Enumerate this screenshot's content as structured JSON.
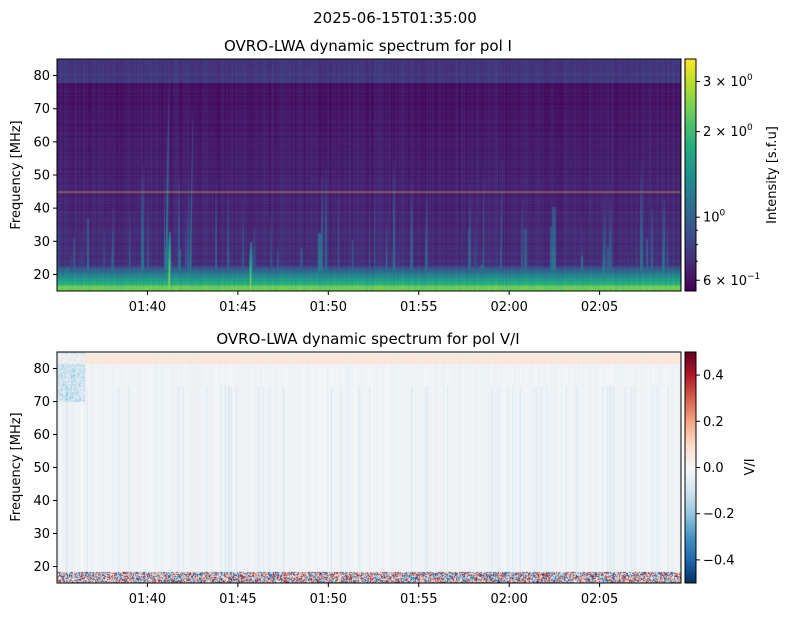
{
  "figure": {
    "suptitle": "2025-06-15T01:35:00"
  },
  "chart_data": [
    {
      "type": "heatmap",
      "title": "OVRO-LWA dynamic spectrum for pol I",
      "xlabel": "",
      "ylabel": "Frequency [MHz]",
      "x_range": [
        "01:35:00",
        "02:09:30"
      ],
      "x_ticks": [
        {
          "t": "01:40",
          "label": "01:40"
        },
        {
          "t": "01:45",
          "label": "01:45"
        },
        {
          "t": "01:50",
          "label": "01:50"
        },
        {
          "t": "01:55",
          "label": "01:55"
        },
        {
          "t": "02:00",
          "label": "02:00"
        },
        {
          "t": "02:05",
          "label": "02:05"
        }
      ],
      "ylim": [
        15,
        85
      ],
      "y_ticks": [
        20,
        30,
        40,
        50,
        60,
        70,
        80
      ],
      "colormap": "viridis",
      "colorbar": {
        "label": "Intensity [s.f.u]",
        "scale": "log",
        "range": [
          0.55,
          3.6
        ],
        "ticks": [
          {
            "value": 3,
            "base": "3 × 10",
            "exp": "0"
          },
          {
            "value": 2,
            "base": "2 × 10",
            "exp": "0"
          },
          {
            "value": 1,
            "base": "10",
            "exp": "0"
          },
          {
            "value": 0.6,
            "base": "6 × 10",
            "exp": "−1"
          }
        ]
      },
      "horizontal_line_mhz": 45,
      "features": {
        "background_level": 0.6,
        "low_freq_band_mhz": [
          15,
          22
        ],
        "bursts": [
          {
            "t": "01:41:10",
            "f_top": 33,
            "level": 3.2
          },
          {
            "t": "01:45:40",
            "f_top": 30,
            "level": 3.0
          },
          {
            "t": "01:41:00",
            "f_top": 85,
            "level": 1.6
          },
          {
            "t": "01:42:20",
            "f_top": 80,
            "level": 1.4
          },
          {
            "t": "01:38:00",
            "f_top": 40,
            "level": 1.5
          },
          {
            "t": "01:47:10",
            "f_top": 35,
            "level": 1.5
          },
          {
            "t": "01:53:10",
            "f_top": 45,
            "level": 1.4
          },
          {
            "t": "01:55:20",
            "f_top": 60,
            "level": 1.3
          },
          {
            "t": "01:59:30",
            "f_top": 70,
            "level": 1.3
          },
          {
            "t": "02:05:10",
            "f_top": 40,
            "level": 1.6
          },
          {
            "t": "02:08:30",
            "f_top": 50,
            "level": 1.6
          }
        ]
      }
    },
    {
      "type": "heatmap",
      "title": "OVRO-LWA dynamic spectrum for pol V/I",
      "xlabel": "",
      "ylabel": "Frequency [MHz]",
      "x_range": [
        "01:35:00",
        "02:09:30"
      ],
      "x_ticks": [
        {
          "t": "01:40",
          "label": "01:40"
        },
        {
          "t": "01:45",
          "label": "01:45"
        },
        {
          "t": "01:50",
          "label": "01:50"
        },
        {
          "t": "01:55",
          "label": "01:55"
        },
        {
          "t": "02:00",
          "label": "02:00"
        },
        {
          "t": "02:05",
          "label": "02:05"
        }
      ],
      "ylim": [
        15,
        85
      ],
      "y_ticks": [
        20,
        30,
        40,
        50,
        60,
        70,
        80
      ],
      "colormap": "RdBu_r",
      "colorbar": {
        "label": "V/I",
        "scale": "linear",
        "range": [
          -0.5,
          0.5
        ],
        "ticks": [
          {
            "value": 0.4,
            "label": "0.4"
          },
          {
            "value": 0.2,
            "label": "0.2"
          },
          {
            "value": 0.0,
            "label": "0.0"
          },
          {
            "value": -0.2,
            "label": "−0.2"
          },
          {
            "value": -0.4,
            "label": "−0.4"
          }
        ]
      },
      "features": {
        "background_level": -0.02,
        "high_freq_band_mhz": [
          82,
          84
        ],
        "low_freq_band_mhz": [
          15,
          18
        ]
      }
    }
  ]
}
